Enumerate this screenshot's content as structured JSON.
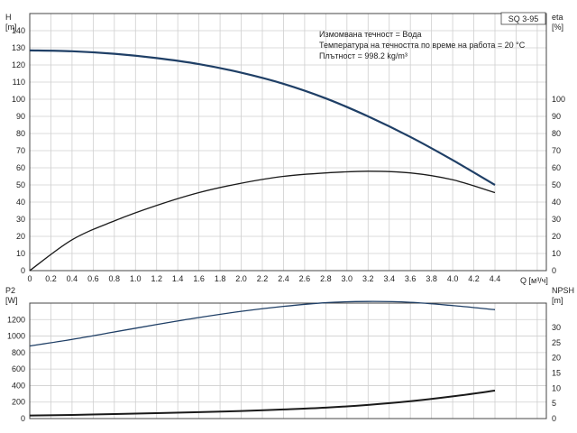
{
  "chart_data": [
    {
      "id": "head-efficiency",
      "type": "line",
      "model_label": "SQ 3-95",
      "annotations": [
        "Измомвана течност = Вода",
        "Температура на течността по време на работа = 20 °C",
        "Плътност = 998.2 kg/m³"
      ],
      "xlabel": "Q [м³/ч]",
      "xlim": [
        0,
        4.4
      ],
      "xticks": [
        "0",
        "0.2",
        "0.4",
        "0.6",
        "0.8",
        "1.0",
        "1.2",
        "1.4",
        "1.6",
        "1.8",
        "2.0",
        "2.2",
        "2.4",
        "2.6",
        "2.8",
        "3.0",
        "3.2",
        "3.4",
        "3.6",
        "3.8",
        "4.0",
        "4.2",
        "4.4"
      ],
      "y_left": {
        "label": "H",
        "unit": "[m]",
        "lim": [
          0,
          150
        ],
        "ticks": [
          "0",
          "10",
          "20",
          "30",
          "40",
          "50",
          "60",
          "70",
          "80",
          "90",
          "100",
          "110",
          "120",
          "130",
          "140"
        ]
      },
      "y_right": {
        "label": "eta",
        "unit": "[%]",
        "lim": [
          0,
          150
        ],
        "ticks": [
          "0",
          "10",
          "20",
          "30",
          "40",
          "50",
          "60",
          "70",
          "80",
          "90",
          "100"
        ]
      },
      "grid": true,
      "series": [
        {
          "axis": "left",
          "color": "#1f3f66",
          "x": [
            0,
            0.4,
            0.8,
            1.2,
            1.6,
            2.0,
            2.4,
            2.8,
            3.2,
            3.6,
            4.0,
            4.4
          ],
          "y": [
            128.5,
            128,
            126.5,
            124,
            120.5,
            115.5,
            109,
            100.5,
            90,
            78,
            64.5,
            50
          ]
        },
        {
          "axis": "right",
          "color": "#1a1a1a",
          "x": [
            0,
            0.4,
            0.8,
            1.2,
            1.6,
            2.0,
            2.4,
            2.8,
            3.2,
            3.6,
            4.0,
            4.4
          ],
          "y": [
            0,
            18,
            29,
            38,
            45.5,
            51,
            55,
            57,
            58,
            57,
            53,
            45.5
          ]
        }
      ]
    },
    {
      "id": "power-npsh",
      "type": "line",
      "xlim": [
        0,
        4.4
      ],
      "y_left": {
        "label": "P2",
        "unit": "[W]",
        "lim": [
          0,
          1400
        ],
        "ticks": [
          "0",
          "200",
          "400",
          "600",
          "800",
          "1000",
          "1200"
        ]
      },
      "y_right": {
        "label": "NPSH",
        "unit": "[m]",
        "lim": [
          0,
          38
        ],
        "ticks": [
          "0",
          "5",
          "10",
          "15",
          "20",
          "25",
          "30"
        ]
      },
      "grid": true,
      "series": [
        {
          "axis": "left",
          "color": "#1f3f66",
          "x": [
            0,
            0.4,
            0.8,
            1.2,
            1.6,
            2.0,
            2.4,
            2.8,
            3.2,
            3.6,
            4.0,
            4.4
          ],
          "y": [
            880,
            960,
            1050,
            1140,
            1225,
            1300,
            1360,
            1405,
            1420,
            1410,
            1370,
            1320
          ]
        },
        {
          "axis": "right",
          "color": "#1a1a1a",
          "x": [
            0,
            0.4,
            0.8,
            1.2,
            1.6,
            2.0,
            2.4,
            2.8,
            3.2,
            3.6,
            4.0,
            4.4
          ],
          "y": [
            1,
            1.2,
            1.5,
            1.8,
            2.1,
            2.5,
            3.0,
            3.6,
            4.5,
            5.7,
            7.3,
            9.2
          ]
        }
      ]
    }
  ]
}
